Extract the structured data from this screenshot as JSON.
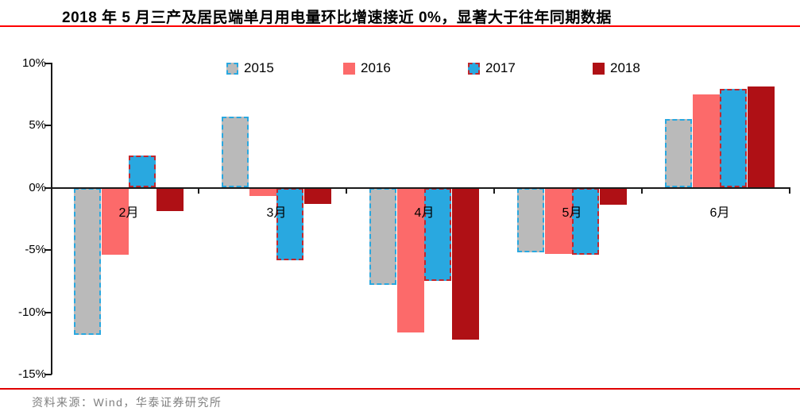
{
  "title": "2018 年 5 月三产及居民端单月用电量环比增速接近 0%，显著大于往年同期数据",
  "source": "资料来源：Wind，华泰证券研究所",
  "colors": {
    "title_rule": "#ff0000",
    "footer_rule": "#e00000",
    "axis": "#1a1a1a",
    "text": "#000000",
    "source_text": "#7f7f7f",
    "background": "#ffffff"
  },
  "chart_data": {
    "type": "bar",
    "title": "2018 年 5 月三产及居民端单月用电量环比增速接近 0%，显著大于往年同期数据",
    "categories": [
      "2月",
      "3月",
      "4月",
      "5月",
      "6月"
    ],
    "series": [
      {
        "name": "2015",
        "values": [
          -11.8,
          5.7,
          -7.8,
          -5.2,
          5.5
        ],
        "fill": "#bababa",
        "border_color": "#29a8e0",
        "border_style": "dashed"
      },
      {
        "name": "2016",
        "values": [
          -5.4,
          -0.7,
          -11.6,
          -5.3,
          7.5
        ],
        "fill": "#fc6a6a",
        "border_color": null,
        "border_style": "none"
      },
      {
        "name": "2017",
        "values": [
          2.6,
          -5.8,
          -7.5,
          -5.4,
          7.9
        ],
        "fill": "#29a8e0",
        "border_color": "#c1272d",
        "border_style": "dashed"
      },
      {
        "name": "2018",
        "values": [
          -1.9,
          -1.3,
          -12.2,
          -1.4,
          8.1
        ],
        "fill": "#af1015",
        "border_color": null,
        "border_style": "none"
      }
    ],
    "unit": "%",
    "ylim": [
      -15,
      10
    ],
    "yticks": [
      {
        "value": 10,
        "label": "10%"
      },
      {
        "value": 5,
        "label": "5%"
      },
      {
        "value": 0,
        "label": "0%"
      },
      {
        "value": -5,
        "label": "-5%"
      },
      {
        "value": -10,
        "label": "-10%"
      },
      {
        "value": -15,
        "label": "-15%"
      }
    ],
    "legend": [
      "2015",
      "2016",
      "2017",
      "2018"
    ],
    "legend_position": "top",
    "grid": false
  }
}
